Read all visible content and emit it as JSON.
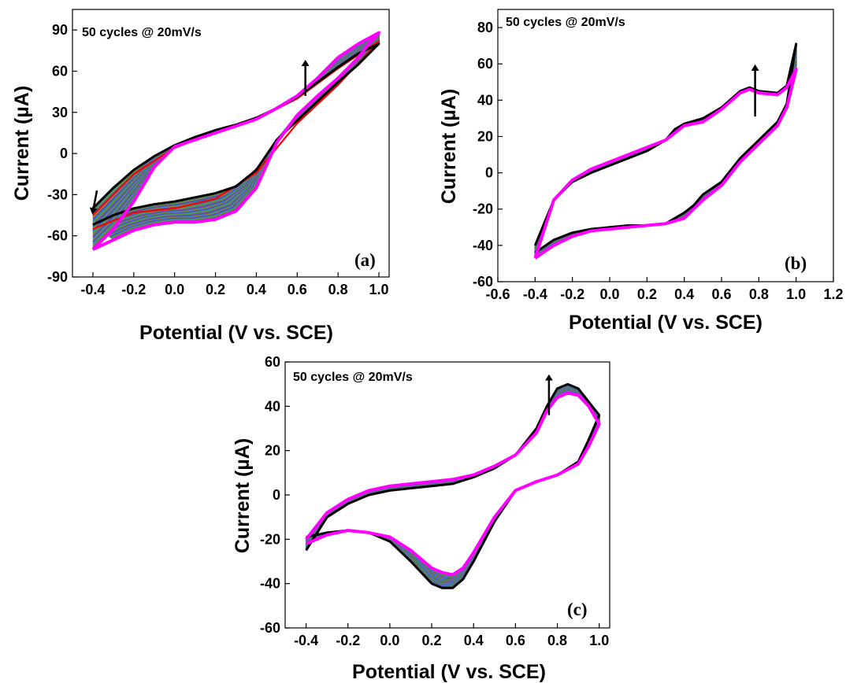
{
  "colors": {
    "first_cycle": "#000000",
    "second_cycle": "#ff0000",
    "last_cycle": "#ff00ff",
    "intermediate": [
      "#4a4ad8",
      "#3a8a8a",
      "#5a9a3a",
      "#7a4aa0",
      "#2a6ab8",
      "#8a8a3a"
    ]
  },
  "chart_data": [
    {
      "type": "line",
      "panel_label": "(a)",
      "annotation": "50 cycles @ 20mV/s",
      "xlabel": "Potential (V vs. SCE)",
      "ylabel": "Current (µA)",
      "xlim": [
        -0.5,
        1.05
      ],
      "ylim": [
        -90,
        105
      ],
      "xticks": [
        "-0.4",
        "-0.2",
        "0.0",
        "0.2",
        "0.4",
        "0.6",
        "0.8",
        "1.0"
      ],
      "yticks": [
        "-90",
        "-60",
        "-30",
        "0",
        "30",
        "60",
        "90"
      ],
      "grid": false,
      "series": [
        {
          "cycle": 1,
          "x": [
            -0.4,
            -0.3,
            -0.2,
            -0.1,
            0.0,
            0.1,
            0.2,
            0.3,
            0.4,
            0.5,
            0.6,
            0.7,
            0.8,
            0.9,
            1.0,
            0.9,
            0.8,
            0.7,
            0.6,
            0.5,
            0.4,
            0.3,
            0.2,
            0.1,
            0.0,
            -0.1,
            -0.2,
            -0.3,
            -0.4
          ],
          "y": [
            -40,
            -25,
            -12,
            -2,
            6,
            12,
            17,
            21,
            26,
            33,
            41,
            52,
            63,
            73,
            80,
            65,
            52,
            38,
            24,
            10,
            -12,
            -24,
            -29,
            -32,
            -35,
            -37,
            -40,
            -45,
            -52
          ]
        },
        {
          "cycle": 2,
          "x": [
            -0.4,
            -0.2,
            0.0,
            0.2,
            0.4,
            0.6,
            0.8,
            1.0,
            0.8,
            0.6,
            0.4,
            0.2,
            0.0,
            -0.2,
            -0.4
          ],
          "y": [
            -45,
            -15,
            4,
            16,
            25,
            40,
            62,
            82,
            50,
            22,
            -14,
            -33,
            -40,
            -43,
            -55
          ]
        },
        {
          "cycle": 50,
          "x": [
            -0.4,
            -0.3,
            -0.2,
            -0.1,
            0.0,
            0.1,
            0.2,
            0.3,
            0.4,
            0.5,
            0.6,
            0.7,
            0.8,
            0.9,
            1.0,
            0.95,
            0.9,
            0.8,
            0.7,
            0.6,
            0.5,
            0.4,
            0.3,
            0.2,
            0.1,
            0.0,
            -0.1,
            -0.2,
            -0.3,
            -0.4
          ],
          "y": [
            -70,
            -55,
            -35,
            -10,
            5,
            10,
            15,
            20,
            25,
            33,
            42,
            55,
            70,
            80,
            88,
            80,
            70,
            55,
            42,
            28,
            8,
            -25,
            -42,
            -48,
            -50,
            -50,
            -52,
            -56,
            -63,
            -70
          ]
        }
      ],
      "arrows": [
        {
          "from": [
            0.64,
            42
          ],
          "to": [
            0.64,
            66
          ]
        },
        {
          "from": [
            -0.38,
            -27
          ],
          "to": [
            -0.4,
            -42
          ]
        }
      ]
    },
    {
      "type": "line",
      "panel_label": "(b)",
      "annotation": "50 cycles @ 20mV/s",
      "xlabel": "Potential (V vs. SCE)",
      "ylabel": "Current (µA)",
      "xlim": [
        -0.6,
        1.2
      ],
      "ylim": [
        -60,
        90
      ],
      "xticks": [
        "-0.6",
        "-0.4",
        "-0.2",
        "0.0",
        "0.2",
        "0.4",
        "0.6",
        "0.8",
        "1.0",
        "1.2"
      ],
      "yticks": [
        "-60",
        "-40",
        "-20",
        "0",
        "20",
        "40",
        "60",
        "80"
      ],
      "grid": false,
      "series": [
        {
          "cycle": 1,
          "x": [
            -0.4,
            -0.3,
            -0.2,
            -0.1,
            0.0,
            0.1,
            0.2,
            0.3,
            0.35,
            0.4,
            0.5,
            0.6,
            0.7,
            0.75,
            0.8,
            0.9,
            0.95,
            1.0,
            0.95,
            0.9,
            0.8,
            0.7,
            0.6,
            0.5,
            0.45,
            0.4,
            0.3,
            0.2,
            0.1,
            0.0,
            -0.1,
            -0.2,
            -0.3,
            -0.4
          ],
          "y": [
            -40,
            -15,
            -5,
            0,
            4,
            8,
            12,
            18,
            24,
            27,
            30,
            36,
            45,
            47,
            45,
            44,
            48,
            71,
            38,
            28,
            18,
            8,
            -5,
            -12,
            -18,
            -22,
            -28,
            -29,
            -29,
            -30,
            -31,
            -33,
            -37,
            -44
          ]
        },
        {
          "cycle": 50,
          "x": [
            -0.4,
            -0.3,
            -0.2,
            -0.1,
            0.0,
            0.1,
            0.2,
            0.3,
            0.35,
            0.4,
            0.5,
            0.6,
            0.7,
            0.75,
            0.8,
            0.9,
            0.95,
            1.0,
            0.95,
            0.9,
            0.8,
            0.7,
            0.6,
            0.5,
            0.45,
            0.4,
            0.3,
            0.2,
            0.1,
            0.0,
            -0.1,
            -0.2,
            -0.3,
            -0.4
          ],
          "y": [
            -47,
            -15,
            -4,
            2,
            6,
            10,
            14,
            18,
            22,
            26,
            28,
            35,
            44,
            46,
            44,
            43,
            47,
            57,
            36,
            26,
            16,
            6,
            -7,
            -15,
            -20,
            -25,
            -28,
            -29,
            -30,
            -31,
            -32,
            -35,
            -40,
            -47
          ]
        }
      ],
      "arrows": [
        {
          "from": [
            0.78,
            31
          ],
          "to": [
            0.78,
            58
          ]
        }
      ]
    },
    {
      "type": "line",
      "panel_label": "(c)",
      "annotation": "50 cycles @ 20mV/s",
      "xlabel": "Potential (V vs. SCE)",
      "ylabel": "Current (µA)",
      "xlim": [
        -0.5,
        1.05
      ],
      "ylim": [
        -60,
        60
      ],
      "xticks": [
        "-0.4",
        "-0.2",
        "0.0",
        "0.2",
        "0.4",
        "0.6",
        "0.8",
        "1.0"
      ],
      "yticks": [
        "-60",
        "-40",
        "-20",
        "0",
        "20",
        "40",
        "60"
      ],
      "grid": false,
      "series": [
        {
          "cycle": 1,
          "x": [
            -0.4,
            -0.3,
            -0.2,
            -0.1,
            0.0,
            0.1,
            0.2,
            0.3,
            0.4,
            0.5,
            0.6,
            0.7,
            0.75,
            0.8,
            0.85,
            0.9,
            0.95,
            1.0,
            0.95,
            0.9,
            0.8,
            0.7,
            0.65,
            0.6,
            0.5,
            0.4,
            0.35,
            0.3,
            0.25,
            0.2,
            0.1,
            0.0,
            -0.1,
            -0.2,
            -0.3,
            -0.4
          ],
          "y": [
            -25,
            -10,
            -4,
            0,
            2,
            3,
            4,
            5,
            8,
            12,
            18,
            30,
            40,
            48,
            50,
            48,
            42,
            36,
            25,
            15,
            9,
            6,
            4,
            2,
            -12,
            -30,
            -38,
            -42,
            -42,
            -40,
            -30,
            -21,
            -17,
            -16,
            -17,
            -19
          ]
        },
        {
          "cycle": 50,
          "x": [
            -0.4,
            -0.3,
            -0.2,
            -0.1,
            0.0,
            0.1,
            0.2,
            0.3,
            0.4,
            0.5,
            0.6,
            0.7,
            0.75,
            0.8,
            0.85,
            0.9,
            0.95,
            1.0,
            0.95,
            0.9,
            0.8,
            0.7,
            0.65,
            0.6,
            0.5,
            0.4,
            0.35,
            0.3,
            0.25,
            0.2,
            0.1,
            0.0,
            -0.1,
            -0.2,
            -0.3,
            -0.4
          ],
          "y": [
            -20,
            -8,
            -2,
            2,
            4,
            5,
            6,
            7,
            9,
            13,
            18,
            28,
            38,
            44,
            46,
            45,
            40,
            32,
            22,
            14,
            9,
            6,
            4,
            2,
            -10,
            -26,
            -33,
            -36,
            -35,
            -33,
            -25,
            -19,
            -17,
            -16,
            -18,
            -22
          ]
        }
      ],
      "arrows": [
        {
          "from": [
            0.76,
            36
          ],
          "to": [
            0.76,
            53
          ]
        }
      ]
    }
  ]
}
